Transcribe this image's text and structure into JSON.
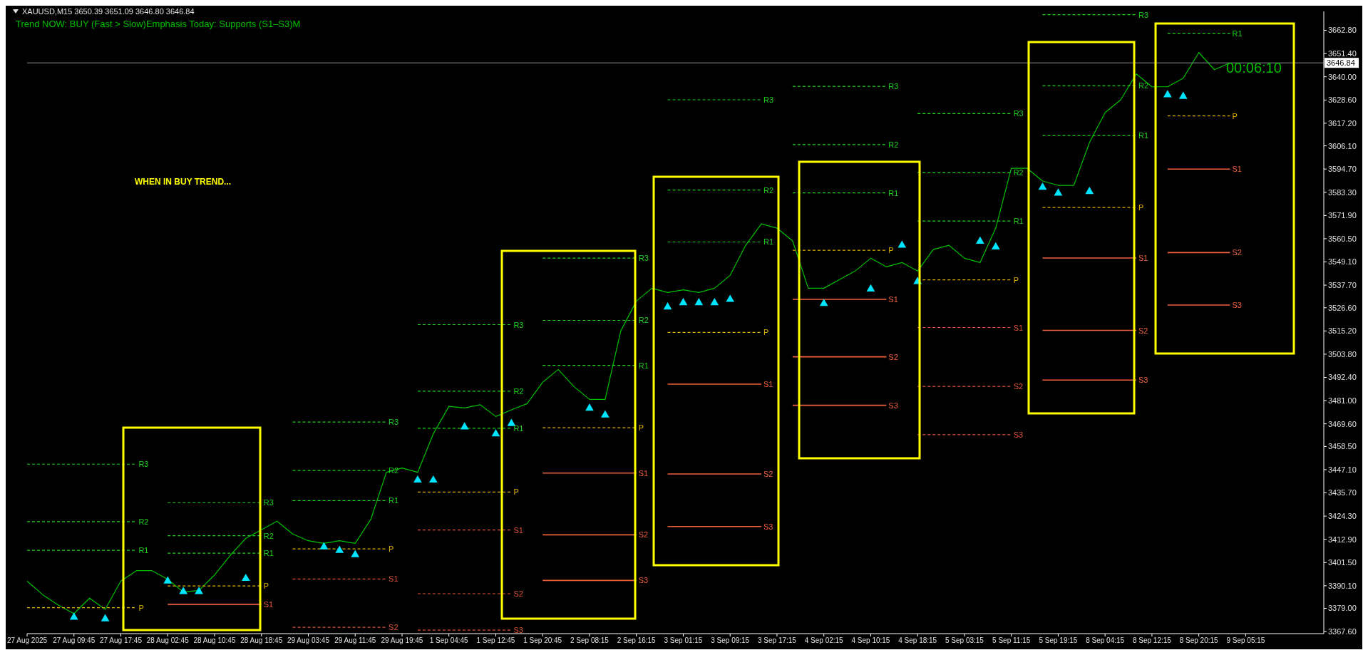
{
  "chart_data": {
    "type": "line",
    "title": "XAUUSD,M15  3650.39 3651.09 3646.80 3646.84",
    "subtitle": "Trend NOW: BUY (Fast > Slow)Emphasis Today: Supports (S1–S3)M",
    "annotations": [
      "WHEN IN BUY TREND...",
      "00:06:10"
    ],
    "marker": "none",
    "categories": [
      "27 Aug 2025",
      null,
      null,
      "27 Aug 09:45",
      null,
      null,
      "27 Aug 17:45",
      null,
      null,
      "28 Aug 02:45",
      null,
      null,
      "28 Aug 10:45",
      null,
      null,
      "28 Aug 18:45",
      null,
      null,
      "29 Aug 03:45",
      null,
      null,
      "29 Aug 11:45",
      null,
      null,
      "29 Aug 19:45",
      null,
      null,
      "1 Sep 04:45",
      null,
      null,
      "1 Sep 12:45",
      null,
      null,
      "1 Sep 20:45",
      null,
      null,
      "2 Sep 08:15",
      null,
      null,
      "2 Sep 16:15",
      null,
      null,
      "3 Sep 01:15",
      null,
      null,
      "3 Sep 09:15",
      null,
      null,
      "3 Sep 17:15",
      null,
      null,
      "4 Sep 02:15",
      null,
      null,
      "4 Sep 10:15",
      null,
      null,
      "4 Sep 18:15",
      null,
      null,
      "5 Sep 03:15",
      null,
      null,
      "5 Sep 11:15",
      null,
      null,
      "5 Sep 19:15",
      null,
      null,
      "8 Sep 04:15",
      null,
      null,
      "8 Sep 12:15",
      null,
      null,
      "8 Sep 20:15",
      null,
      null,
      "9 Sep 05:15",
      null,
      null,
      null,
      null,
      null
    ],
    "series": [
      {
        "color": "#00c000",
        "values": [
          3392.4,
          3385.7,
          3380.6,
          3376.4,
          3384,
          3378.5,
          3392.4,
          3397.5,
          3397.5,
          3393.3,
          3387,
          3387.8,
          3395.4,
          3405,
          3413.4,
          3417.6,
          3421.8,
          3415.5,
          3412.2,
          3410.9,
          3412.2,
          3410.9,
          3422.7,
          3445.8,
          3447.9,
          3445.8,
          3464.7,
          3478.2,
          3477.4,
          3479,
          3473.2,
          3476.5,
          3479.5,
          3490,
          3496.3,
          3487.9,
          3481.6,
          3481.6,
          3515.2,
          3529.9,
          3536.2,
          3534.1,
          3535.4,
          3534.1,
          3536.2,
          3542.5,
          3557.3,
          3567.8,
          3565.7,
          3559.4,
          3536.2,
          3536.2,
          3540.4,
          3544.6,
          3550.9,
          3546.7,
          3548.8,
          3544.6,
          3555.2,
          3557.3,
          3550.9,
          3548.8,
          3565.7,
          3595.1,
          3595.1,
          3588.8,
          3586.7,
          3586.7,
          3607.7,
          3622.4,
          3628.7,
          3641.4,
          3635.1,
          3635.1,
          3639.3,
          3651.9,
          3643.5,
          3646.8,
          null,
          null,
          null,
          null,
          null,
          null
        ]
      },
      {
        "type": "scatter",
        "color": "#00e5ff",
        "marker": "triangle",
        "values": [
          null,
          null,
          null,
          3376.4,
          null,
          3375.6,
          null,
          null,
          null,
          3394.1,
          3389,
          3389,
          null,
          null,
          3395.4,
          null,
          null,
          null,
          null,
          3410.9,
          3409.2,
          3407.1,
          null,
          null,
          null,
          3443.7,
          3443.7,
          null,
          3469.8,
          null,
          3466.4,
          3471.5,
          null,
          null,
          null,
          null,
          3479,
          3475.7,
          null,
          null,
          null,
          3528.7,
          3530.8,
          3530.8,
          3530.8,
          3532.4,
          null,
          null,
          null,
          null,
          null,
          3530.4,
          null,
          null,
          3537.5,
          null,
          3559,
          3541.2,
          null,
          null,
          null,
          3561,
          3558.2,
          null,
          null,
          3587.5,
          3584.6,
          null,
          3585.4,
          null,
          null,
          null,
          null,
          3632.9,
          3632.1,
          null,
          null,
          null,
          null,
          null,
          null,
          null,
          null,
          null
        ]
      },
      {
        "name": "R3",
        "color": "#1ed21e",
        "line_style": "dashed",
        "values": [
          3449.8,
          3449.8,
          3449.8,
          3449.8,
          3449.8,
          3449.8,
          3449.8,
          3449.8,
          null,
          3430.9,
          3430.9,
          3430.9,
          3430.9,
          3430.9,
          3430.9,
          3430.9,
          null,
          3470.5,
          3470.5,
          3470.5,
          3470.5,
          3470.5,
          3470.5,
          3470.5,
          null,
          3518.3,
          3518.3,
          3518.3,
          3518.3,
          3518.3,
          3518.3,
          3518.3,
          null,
          3551,
          3551,
          3551,
          3551,
          3551,
          3551,
          3551,
          null,
          3628.7,
          3628.7,
          3628.7,
          3628.7,
          3628.7,
          3628.7,
          3628.7,
          null,
          3635.3,
          3635.3,
          3635.3,
          3635.3,
          3635.3,
          3635.3,
          3635.3,
          null,
          3621.9,
          3621.9,
          3621.9,
          3621.9,
          3621.9,
          3621.9,
          3621.9,
          null,
          3670.5,
          3670.5,
          3670.5,
          3670.5,
          3670.5,
          3670.5,
          3670.5,
          null,
          null,
          null,
          null,
          null,
          null,
          null,
          null,
          null,
          null,
          null,
          null
        ]
      },
      {
        "name": "R2",
        "color": "#1ed21e",
        "line_style": "dashed",
        "values": [
          3421.6,
          3421.6,
          3421.6,
          3421.6,
          3421.6,
          3421.6,
          3421.6,
          3421.6,
          null,
          3414.7,
          3414.7,
          3414.7,
          3414.7,
          3414.7,
          3414.7,
          3414.7,
          null,
          3446.7,
          3446.7,
          3446.7,
          3446.7,
          3446.7,
          3446.7,
          3446.7,
          null,
          3485.6,
          3485.6,
          3485.6,
          3485.6,
          3485.6,
          3485.6,
          3485.6,
          null,
          3520.4,
          3520.4,
          3520.4,
          3520.4,
          3520.4,
          3520.4,
          3520.4,
          null,
          3584.4,
          3584.4,
          3584.4,
          3584.4,
          3584.4,
          3584.4,
          3584.4,
          null,
          3606.7,
          3606.7,
          3606.7,
          3606.7,
          3606.7,
          3606.7,
          3606.7,
          null,
          3592.9,
          3592.9,
          3592.9,
          3592.9,
          3592.9,
          3592.9,
          3592.9,
          null,
          3635.6,
          3635.6,
          3635.6,
          3635.6,
          3635.6,
          3635.6,
          3635.6,
          null,
          null,
          null,
          null,
          null,
          null,
          null,
          null,
          null,
          null,
          null,
          null
        ]
      },
      {
        "name": "R1",
        "color": "#1ed21e",
        "line_style": "dashed",
        "values": [
          3407.5,
          3407.5,
          3407.5,
          3407.5,
          3407.5,
          3407.5,
          3407.5,
          3407.5,
          null,
          3406.1,
          3406.1,
          3406.1,
          3406.1,
          3406.1,
          3406.1,
          3406.1,
          null,
          3431.9,
          3431.9,
          3431.9,
          3431.9,
          3431.9,
          3431.9,
          3431.9,
          null,
          3467.4,
          3467.4,
          3467.4,
          3467.4,
          3467.4,
          3467.4,
          3467.4,
          null,
          3498.3,
          3498.3,
          3498.3,
          3498.3,
          3498.3,
          3498.3,
          3498.3,
          null,
          3558.9,
          3558.9,
          3558.9,
          3558.9,
          3558.9,
          3558.9,
          3558.9,
          null,
          3583,
          3583,
          3583,
          3583,
          3583,
          3583,
          3583,
          null,
          3569.2,
          3569.2,
          3569.2,
          3569.2,
          3569.2,
          3569.2,
          3569.2,
          null,
          3611.2,
          3611.2,
          3611.2,
          3611.2,
          3611.2,
          3611.2,
          3611.2,
          null,
          3661.4,
          3661.4,
          3661.4,
          3661.4,
          3661.4,
          null,
          null,
          null,
          null,
          null,
          null
        ]
      },
      {
        "name": "P",
        "color": "#e0b000",
        "line_style": "dashed",
        "values": [
          3379.3,
          3379.3,
          3379.3,
          3379.3,
          3379.3,
          3379.3,
          3379.3,
          3379.3,
          null,
          3390,
          3390,
          3390,
          3390,
          3390,
          3390,
          3390,
          null,
          3408.2,
          3408.2,
          3408.2,
          3408.2,
          3408.2,
          3408.2,
          3408.2,
          null,
          3436.1,
          3436.1,
          3436.1,
          3436.1,
          3436.1,
          3436.1,
          3436.1,
          null,
          3467.7,
          3467.7,
          3467.7,
          3467.7,
          3467.7,
          3467.7,
          3467.7,
          null,
          3514.5,
          3514.5,
          3514.5,
          3514.5,
          3514.5,
          3514.5,
          3514.5,
          null,
          3554.8,
          3554.8,
          3554.8,
          3554.8,
          3554.8,
          3554.8,
          3554.8,
          null,
          3540.3,
          3540.3,
          3540.3,
          3540.3,
          3540.3,
          3540.3,
          3540.3,
          null,
          3575.8,
          3575.8,
          3575.8,
          3575.8,
          3575.8,
          3575.8,
          3575.8,
          null,
          3620.8,
          3620.8,
          3620.8,
          3620.8,
          3620.8,
          null,
          null,
          null,
          null,
          null,
          null
        ]
      },
      {
        "name": "S1",
        "color": "#e0533a",
        "line_style": "dashed",
        "values": [
          null,
          null,
          null,
          null,
          null,
          null,
          null,
          null,
          null,
          null,
          null,
          null,
          null,
          null,
          null,
          null,
          null,
          3393.4,
          3393.4,
          3393.4,
          3393.4,
          3393.4,
          3393.4,
          3393.4,
          null,
          3417.5,
          3417.5,
          3417.5,
          3417.5,
          3417.5,
          3417.5,
          3417.5,
          null,
          null,
          null,
          null,
          null,
          null,
          null,
          null,
          null,
          null,
          null,
          null,
          null,
          null,
          null,
          null,
          null,
          null,
          null,
          null,
          null,
          null,
          null,
          null,
          null,
          3516.9,
          3516.9,
          3516.9,
          3516.9,
          3516.9,
          3516.9,
          3516.9,
          null,
          null,
          null,
          null,
          null,
          null,
          null,
          null,
          null,
          null,
          null,
          null,
          null,
          null,
          null,
          null,
          null,
          null,
          null,
          null
        ]
      },
      {
        "name": "S2",
        "color": "#e0533a",
        "line_style": "dashed",
        "values": [
          null,
          null,
          null,
          null,
          null,
          null,
          null,
          null,
          null,
          null,
          null,
          null,
          null,
          null,
          null,
          null,
          null,
          3369.7,
          3369.7,
          3369.7,
          3369.7,
          3369.7,
          3369.7,
          3369.7,
          null,
          3386.2,
          3386.2,
          3386.2,
          3386.2,
          3386.2,
          3386.2,
          3386.2,
          null,
          null,
          null,
          null,
          null,
          null,
          null,
          null,
          null,
          null,
          null,
          null,
          null,
          null,
          null,
          null,
          null,
          null,
          null,
          null,
          null,
          null,
          null,
          null,
          null,
          3488,
          3488,
          3488,
          3488,
          3488,
          3488,
          3488,
          null,
          null,
          null,
          null,
          null,
          null,
          null,
          null,
          null,
          null,
          null,
          null,
          null,
          null,
          null,
          null,
          null,
          null,
          null,
          null
        ]
      },
      {
        "name": "S3",
        "color": "#e0533a",
        "line_style": "dashed",
        "values": [
          null,
          null,
          null,
          null,
          null,
          null,
          null,
          null,
          null,
          null,
          null,
          null,
          null,
          null,
          null,
          null,
          null,
          null,
          null,
          null,
          null,
          null,
          null,
          null,
          null,
          3368.3,
          3368.3,
          3368.3,
          3368.3,
          3368.3,
          3368.3,
          3368.3,
          null,
          null,
          null,
          null,
          null,
          null,
          null,
          null,
          null,
          null,
          null,
          null,
          null,
          null,
          null,
          null,
          null,
          null,
          null,
          null,
          null,
          null,
          null,
          null,
          null,
          3464.3,
          3464.3,
          3464.3,
          3464.3,
          3464.3,
          3464.3,
          3464.3,
          null,
          null,
          null,
          null,
          null,
          null,
          null,
          null,
          null,
          null,
          null,
          null,
          null,
          null,
          null,
          null,
          null,
          null,
          null,
          null
        ]
      },
      {
        "name": "S1",
        "color": "#f0603f",
        "line_style": "solid",
        "values": [
          null,
          null,
          null,
          null,
          null,
          null,
          null,
          null,
          null,
          3381,
          3381,
          3381,
          3381,
          3381,
          3381,
          3381,
          null,
          null,
          null,
          null,
          null,
          null,
          null,
          null,
          null,
          null,
          null,
          null,
          null,
          null,
          null,
          null,
          null,
          3445.4,
          3445.4,
          3445.4,
          3445.4,
          3445.4,
          3445.4,
          3445.4,
          null,
          3489.1,
          3489.1,
          3489.1,
          3489.1,
          3489.1,
          3489.1,
          3489.1,
          null,
          3530.7,
          3530.7,
          3530.7,
          3530.7,
          3530.7,
          3530.7,
          3530.7,
          null,
          null,
          null,
          null,
          null,
          null,
          null,
          null,
          null,
          3551,
          3551,
          3551,
          3551,
          3551,
          3551,
          3551,
          null,
          3594.7,
          3594.7,
          3594.7,
          3594.7,
          3594.7,
          null,
          null,
          null,
          null,
          null,
          null
        ]
      },
      {
        "name": "S2",
        "color": "#f0603f",
        "line_style": "solid",
        "values": [
          null,
          null,
          null,
          null,
          null,
          null,
          null,
          null,
          null,
          null,
          null,
          null,
          null,
          null,
          null,
          null,
          null,
          null,
          null,
          null,
          null,
          null,
          null,
          null,
          null,
          null,
          null,
          null,
          null,
          null,
          null,
          null,
          null,
          3415.1,
          3415.1,
          3415.1,
          3415.1,
          3415.1,
          3415.1,
          3415.1,
          null,
          3445,
          3445,
          3445,
          3445,
          3445,
          3445,
          3445,
          null,
          3502.5,
          3502.5,
          3502.5,
          3502.5,
          3502.5,
          3502.5,
          3502.5,
          null,
          null,
          null,
          null,
          null,
          null,
          null,
          null,
          null,
          3515.5,
          3515.5,
          3515.5,
          3515.5,
          3515.5,
          3515.5,
          3515.5,
          null,
          3553.7,
          3553.7,
          3553.7,
          3553.7,
          3553.7,
          null,
          null,
          null,
          null,
          null,
          null
        ]
      },
      {
        "name": "S3",
        "color": "#f0603f",
        "line_style": "solid",
        "values": [
          null,
          null,
          null,
          null,
          null,
          null,
          null,
          null,
          null,
          null,
          null,
          null,
          null,
          null,
          null,
          null,
          null,
          null,
          null,
          null,
          null,
          null,
          null,
          null,
          null,
          null,
          null,
          null,
          null,
          null,
          null,
          null,
          null,
          3392.7,
          3392.7,
          3392.7,
          3392.7,
          3392.7,
          3392.7,
          3392.7,
          null,
          3419.2,
          3419.2,
          3419.2,
          3419.2,
          3419.2,
          3419.2,
          3419.2,
          null,
          3478.7,
          3478.7,
          3478.7,
          3478.7,
          3478.7,
          3478.7,
          3478.7,
          null,
          null,
          null,
          null,
          null,
          null,
          null,
          null,
          null,
          3491.1,
          3491.1,
          3491.1,
          3491.1,
          3491.1,
          3491.1,
          3491.1,
          null,
          3527.9,
          3527.9,
          3527.9,
          3527.9,
          3527.9,
          null,
          null,
          null,
          null,
          null,
          null
        ]
      }
    ],
    "ylim": [
      3366.6,
      3672.1
    ],
    "yticks": [
      {
        "value": 3367.6,
        "label": "3367.60"
      },
      {
        "value": 3379,
        "label": "3379.00"
      },
      {
        "value": 3390.1,
        "label": "3390.10"
      },
      {
        "value": 3401.5,
        "label": "3401.50"
      },
      {
        "value": 3412.9,
        "label": "3412.90"
      },
      {
        "value": 3424.3,
        "label": "3424.30"
      },
      {
        "value": 3435.7,
        "label": "3435.70"
      },
      {
        "value": 3447.1,
        "label": "3447.10"
      },
      {
        "value": 3458.5,
        "label": "3458.50"
      },
      {
        "value": 3469.6,
        "label": "3469.60"
      },
      {
        "value": 3481,
        "label": "3481.00"
      },
      {
        "value": 3492.4,
        "label": "3492.40"
      },
      {
        "value": 3503.8,
        "label": "3503.80"
      },
      {
        "value": 3515.2,
        "label": "3515.20"
      },
      {
        "value": 3526.6,
        "label": "3526.60"
      },
      {
        "value": 3537.7,
        "label": "3537.70"
      },
      {
        "value": 3549.1,
        "label": "3549.10"
      },
      {
        "value": 3560.5,
        "label": "3560.50"
      },
      {
        "value": 3571.9,
        "label": "3571.90"
      },
      {
        "value": 3583.3,
        "label": "3583.30"
      },
      {
        "value": 3594.7,
        "label": "3594.70"
      },
      {
        "value": 3606.1,
        "label": "3606.10"
      },
      {
        "value": 3617.2,
        "label": "3617.20"
      },
      {
        "value": 3628.6,
        "label": "3628.60"
      },
      {
        "value": 3640,
        "label": "3640.00"
      },
      {
        "value": 3651.4,
        "label": "3651.40"
      },
      {
        "value": 3662.8,
        "label": "3662.80"
      }
    ],
    "ref_lines": [
      {
        "axis": "y",
        "value": 3646.84,
        "label": "3646.84",
        "color": "#8a8f99"
      }
    ]
  }
}
